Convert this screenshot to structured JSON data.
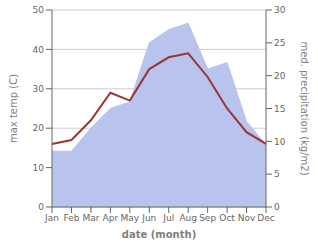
{
  "chart_data": {
    "type": "line",
    "xlabel": "date (month)",
    "ylabel": "max temp (C)",
    "y2label": "med. precipitation (kg/m2)",
    "categories": [
      "Jan",
      "Feb",
      "Mar",
      "Apr",
      "May",
      "Jun",
      "Jul",
      "Aug",
      "Sep",
      "Oct",
      "Nov",
      "Dec"
    ],
    "series": [
      {
        "type": "area",
        "axis": "y2",
        "color": "#b8c4ee",
        "values": [
          8.5,
          8.5,
          12,
          15,
          16,
          25,
          27,
          28,
          21,
          22,
          13,
          9.5
        ]
      },
      {
        "type": "line",
        "color": "#9b3535",
        "values": [
          16,
          17,
          22,
          29,
          27,
          35,
          38,
          39,
          33,
          25,
          19,
          16
        ]
      }
    ],
    "ylim": [
      0,
      50
    ],
    "yticks": [
      0,
      10,
      20,
      30,
      40,
      50
    ],
    "y2lim": [
      0,
      30
    ],
    "y2ticks": [
      0,
      5,
      10,
      15,
      20,
      25,
      30
    ],
    "grid": true
  }
}
